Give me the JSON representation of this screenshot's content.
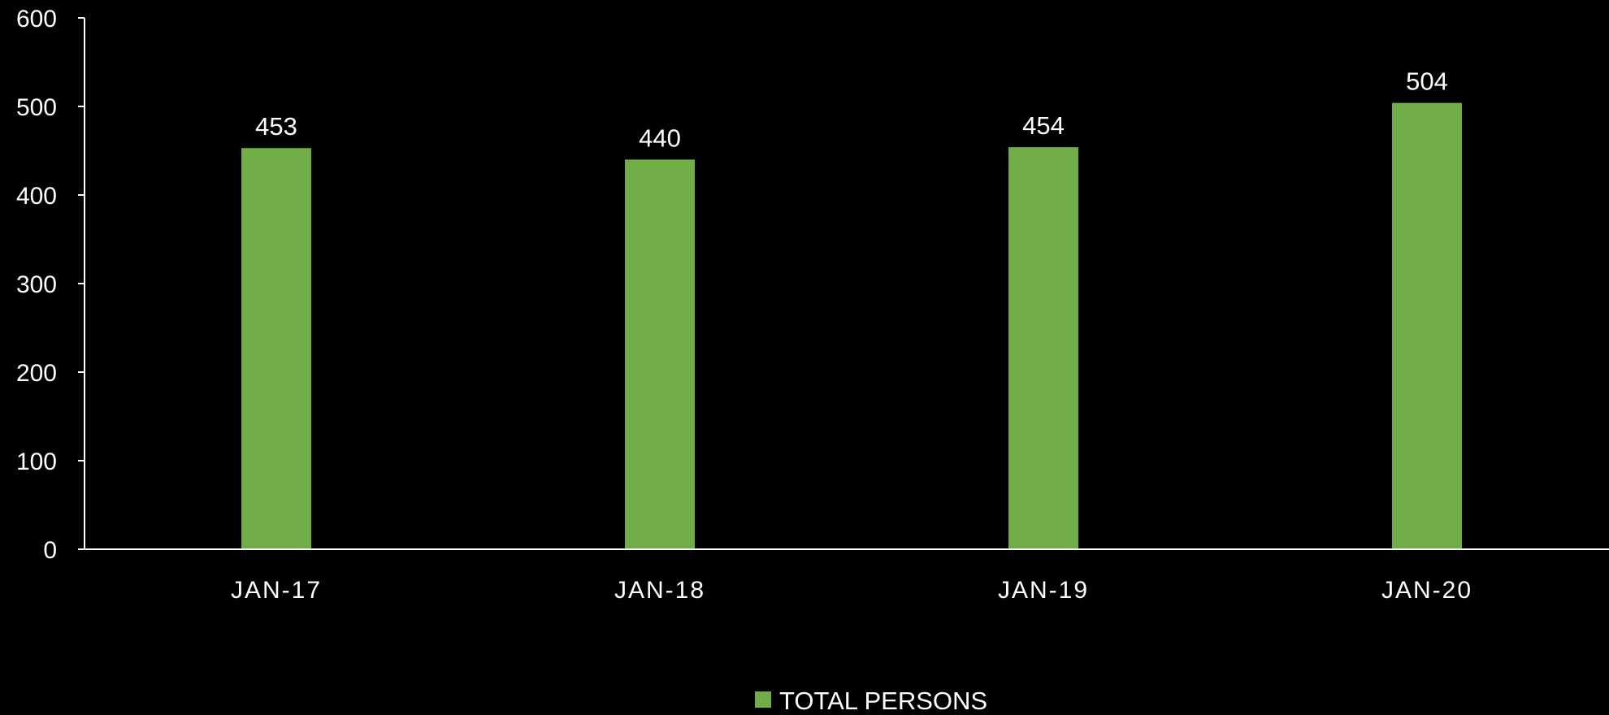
{
  "colors": {
    "background": "#000000",
    "bar": "#70AD47",
    "text": "#ffffff",
    "axis": "#ffffff"
  },
  "chart_data": {
    "type": "bar",
    "categories": [
      "JAN-17",
      "JAN-18",
      "JAN-19",
      "JAN-20"
    ],
    "series": [
      {
        "name": "TOTAL PERSONS",
        "values": [
          453,
          440,
          454,
          504
        ],
        "color": "#70AD47"
      }
    ],
    "data_labels": [
      "453",
      "440",
      "454",
      "504"
    ],
    "ylim": [
      0,
      600
    ],
    "yticks": [
      0,
      100,
      200,
      300,
      400,
      500,
      600
    ],
    "ytick_labels": [
      "0",
      "100",
      "200",
      "300",
      "400",
      "500",
      "600"
    ],
    "grid": false,
    "legend": "bottom-center",
    "title": "",
    "xlabel": "",
    "ylabel": ""
  }
}
